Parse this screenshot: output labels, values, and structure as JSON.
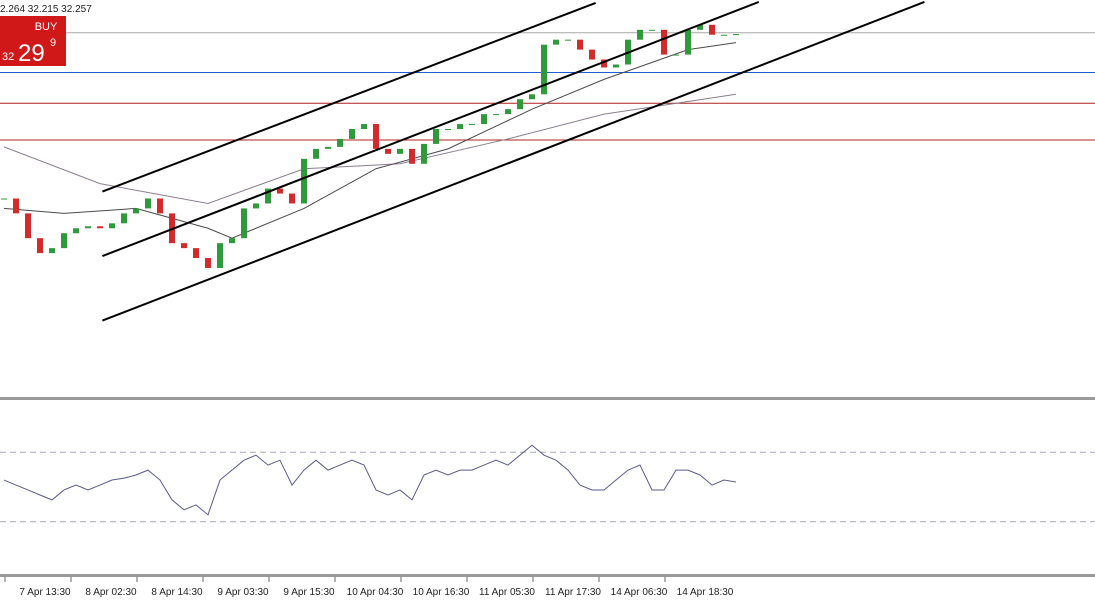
{
  "chart_data": {
    "type": "candlestick",
    "quote_header": "2.264 32.215 32.257",
    "buy_panel": {
      "label": "BUY",
      "price_prefix": "32",
      "price_big": "29",
      "price_small": "9",
      "color": "#d01818"
    },
    "time_labels": [
      "7 Apr 13:30",
      "8 Apr 02:30",
      "8 Apr 14:30",
      "9 Apr 03:30",
      "9 Apr 15:30",
      "10 Apr 04:30",
      "10 Apr 16:30",
      "11 Apr 05:30",
      "11 Apr 17:30",
      "14 Apr 06:30",
      "14 Apr 18:30"
    ],
    "ylim": [
      31.16,
      32.36
    ],
    "up_color": "#2e9a3a",
    "down_color": "#d42a2a",
    "closes": [
      31.76,
      31.715,
      31.64,
      31.595,
      31.61,
      31.655,
      31.67,
      31.676,
      31.67,
      31.685,
      31.715,
      31.73,
      31.76,
      31.715,
      31.625,
      31.61,
      31.58,
      31.55,
      31.625,
      31.64,
      31.73,
      31.745,
      31.79,
      31.775,
      31.745,
      31.88,
      31.91,
      31.916,
      31.94,
      31.97,
      31.985,
      31.91,
      31.895,
      31.91,
      31.865,
      31.925,
      31.97,
      31.97,
      31.985,
      31.985,
      32.015,
      32.015,
      32.03,
      32.06,
      32.075,
      32.225,
      32.24,
      32.24,
      32.21,
      32.18,
      32.156,
      32.165,
      32.24,
      32.27,
      32.27,
      32.195,
      32.195,
      32.27,
      32.285,
      32.255,
      32.255,
      32.257
    ],
    "moving_averages": [
      {
        "color": "#8a7f8e",
        "x": [
          0,
          8,
          17,
          25,
          33,
          42,
          50,
          61
        ],
        "values": [
          31.916,
          31.805,
          31.745,
          31.85,
          31.865,
          31.94,
          32.015,
          32.075
        ]
      },
      {
        "color": "#4a4a4a",
        "x": [
          0,
          5,
          11,
          17,
          19,
          25,
          31,
          37,
          44,
          50,
          57,
          61
        ],
        "values": [
          31.73,
          31.715,
          31.73,
          31.67,
          31.64,
          31.73,
          31.85,
          31.91,
          32.03,
          32.12,
          32.21,
          32.231
        ]
      }
    ],
    "channels": [
      {
        "color": "#000000",
        "x": [
          8.2,
          49.3
        ],
        "values": [
          31.781,
          32.351
        ]
      },
      {
        "color": "#000000",
        "x": [
          8.2,
          62.9
        ],
        "values": [
          31.586,
          32.354
        ]
      },
      {
        "color": "#000000",
        "x": [
          8.2,
          76.7
        ],
        "values": [
          31.391,
          32.354
        ]
      }
    ],
    "levels": [
      {
        "value": 32.261,
        "color": "#a8a8a8"
      },
      {
        "value": 32.141,
        "color": "#1f5fd1"
      },
      {
        "value": 32.048,
        "color": "#b02020"
      },
      {
        "value": 31.937,
        "color": "#b02020"
      }
    ],
    "rsi": {
      "ylim": [
        0,
        100
      ],
      "levels": [
        70,
        30
      ],
      "color": "#5a5a8a",
      "values": [
        54,
        51.1,
        48.3,
        45.4,
        42.6,
        48.3,
        51.1,
        48.3,
        51.1,
        54,
        55.1,
        56.9,
        59.7,
        54,
        42.6,
        36.9,
        39.7,
        34,
        54,
        59.7,
        65.4,
        68.3,
        62.6,
        65.4,
        51.1,
        59.7,
        65.4,
        59.7,
        62.6,
        65.4,
        62.6,
        48.3,
        45.4,
        48.3,
        42.6,
        56.9,
        59.7,
        56.9,
        59.7,
        59.7,
        62.6,
        65.4,
        62.6,
        68.3,
        74,
        68.3,
        65.4,
        59.7,
        51.1,
        48.3,
        48.3,
        54,
        59.7,
        62.6,
        48.3,
        48.3,
        59.7,
        59.7,
        56.9,
        51.1,
        54,
        52.9
      ]
    }
  }
}
